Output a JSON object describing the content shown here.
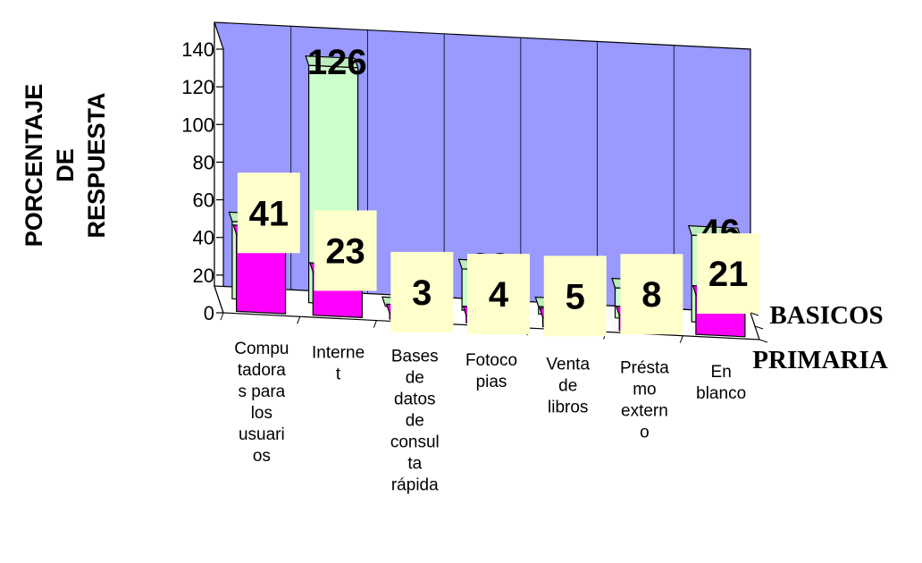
{
  "chart_data": {
    "type": "bar",
    "style": "3d-clustered-depth",
    "title": "",
    "ylabel": "PORCENTAJE DE RESPUESTA",
    "ylabel_lines": [
      "PORCENTAJE",
      "DE",
      "RESPUESTA"
    ],
    "ylim": [
      0,
      140
    ],
    "yticks": [
      "0",
      "20",
      "40",
      "60",
      "80",
      "100",
      "120",
      "140"
    ],
    "grid": false,
    "categories": [
      "Computadoras para los usuarios",
      "Internet",
      "Bases de datos de consulta rápida",
      "Fotocopias",
      "Venta de libros",
      "Préstamo externo",
      "En blanco"
    ],
    "category_lines": [
      [
        "Compu",
        "tadora",
        "s para",
        "los",
        "usuari",
        "os"
      ],
      [
        "Interne",
        "t"
      ],
      [
        "Bases",
        "de",
        "datos",
        "de",
        "consul",
        "ta",
        "rápida"
      ],
      [
        "Fotoco",
        "pias"
      ],
      [
        "Venta",
        "de",
        "libros"
      ],
      [
        "Présta",
        "mo",
        "extern",
        "o"
      ],
      [
        "En",
        "blanco"
      ]
    ],
    "series": [
      {
        "name": "PRIMARIA",
        "values": [
          41,
          23,
          3,
          4,
          5,
          8,
          21
        ],
        "color": "#ff00ff"
      },
      {
        "name": "BASICOS",
        "values": [
          41,
          126,
          0,
          22,
          4,
          16,
          46
        ],
        "color": "#ccffcc"
      }
    ],
    "data_labels": true,
    "colors": {
      "back_wall": "#9999ff",
      "label_box": "#ffffcc",
      "front_bar": "#ccffff"
    }
  }
}
